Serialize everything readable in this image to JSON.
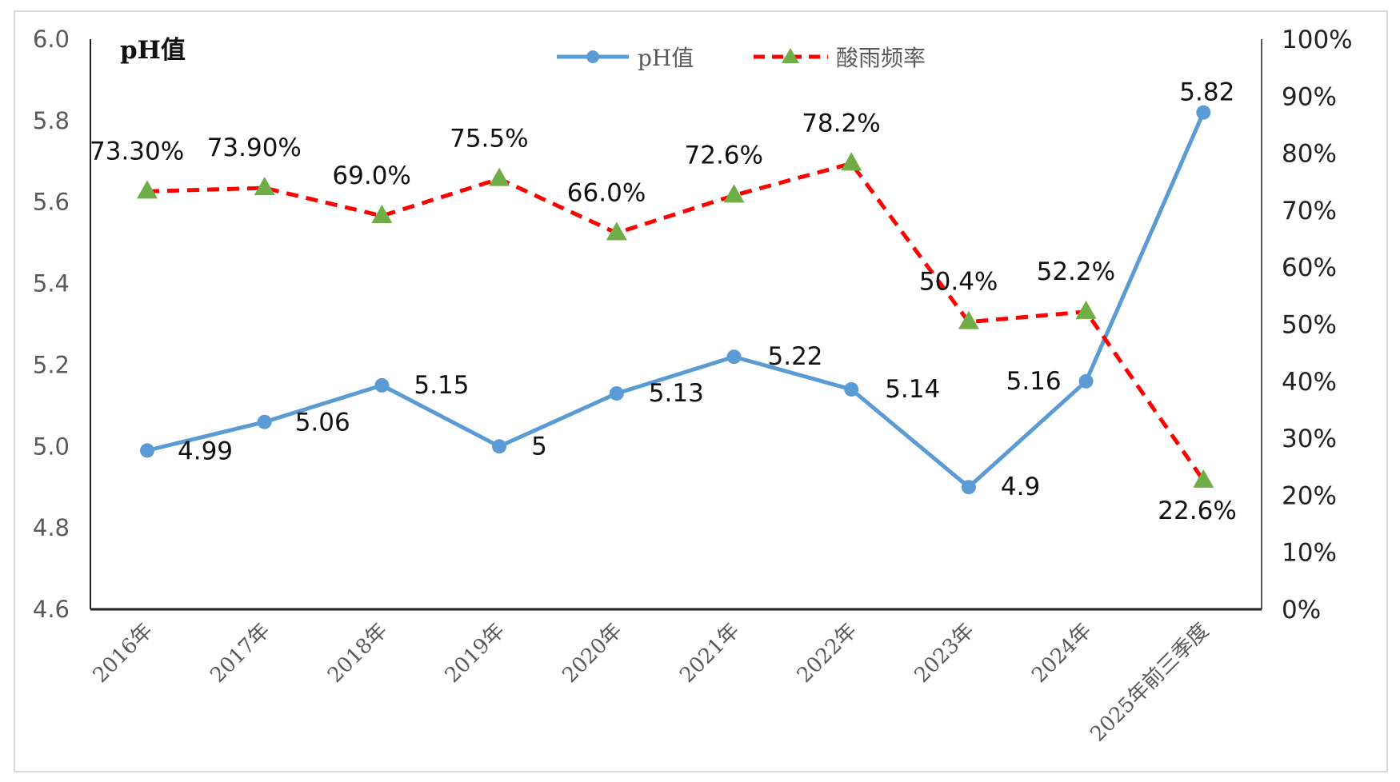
{
  "chart_data": {
    "type": "line",
    "categories": [
      "2016年",
      "2017年",
      "2018年",
      "2019年",
      "2020年",
      "2021年",
      "2022年",
      "2023年",
      "2024年",
      "2025年前三季度"
    ],
    "series": [
      {
        "name": "pH值",
        "axis": "left",
        "color": "#5b9bd5",
        "values": [
          4.99,
          5.06,
          5.15,
          5.0,
          5.13,
          5.22,
          5.14,
          4.9,
          5.16,
          5.82
        ],
        "labels": [
          "4.99",
          "5.06",
          "5.15",
          "5",
          "5.13",
          "5.22",
          "5.14",
          "4.9",
          "5.16",
          "5.82"
        ]
      },
      {
        "name": "酸雨频率",
        "axis": "right",
        "color": "#ff0000",
        "marker_color": "#70ad47",
        "values": [
          73.3,
          73.9,
          69.0,
          75.5,
          66.0,
          72.6,
          78.2,
          50.4,
          52.2,
          22.6
        ],
        "labels": [
          "73.30%",
          "73.90%",
          "69.0%",
          "75.5%",
          "66.0%",
          "72.6%",
          "78.2%",
          "50.4%",
          "52.2%",
          "22.6%"
        ]
      }
    ],
    "ylabel": "pH值",
    "ylim": [
      4.6,
      6.0
    ],
    "yticks": [
      "6.0",
      "5.8",
      "5.6",
      "5.4",
      "5.2",
      "5.0",
      "4.8",
      "4.6"
    ],
    "y2lim": [
      0,
      100
    ],
    "y2ticks": [
      "100%",
      "90%",
      "80%",
      "70%",
      "60%",
      "50%",
      "40%",
      "30%",
      "20%",
      "10%",
      "0%"
    ],
    "legend": "top-center",
    "grid": false
  }
}
